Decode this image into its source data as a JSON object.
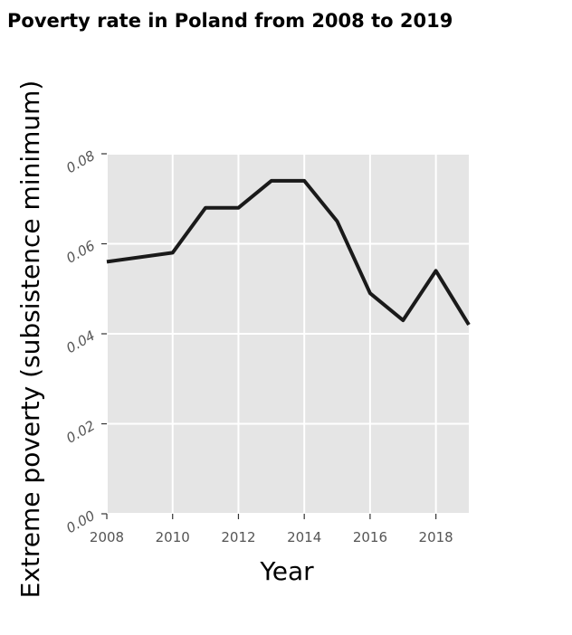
{
  "chart_data": {
    "type": "line",
    "title": "Poverty rate in Poland from 2008 to 2019",
    "xlabel": "Year",
    "ylabel": "Extreme poverty (subsistence minimum)",
    "x": [
      2008,
      2010,
      2011,
      2012,
      2013,
      2014,
      2015,
      2016,
      2017,
      2018,
      2019
    ],
    "series": [
      {
        "values": [
          0.056,
          0.058,
          0.068,
          0.068,
          0.074,
          0.074,
          0.065,
          0.049,
          0.043,
          0.054,
          0.042
        ]
      }
    ],
    "xlim": [
      2008,
      2019
    ],
    "ylim": [
      0,
      0.08
    ],
    "x_ticks": [
      2008,
      2010,
      2012,
      2014,
      2016,
      2018
    ],
    "x_tick_labels": [
      "2008",
      "2010",
      "2012",
      "2014",
      "2016",
      "2018"
    ],
    "y_ticks": [
      0,
      0.02,
      0.04,
      0.06,
      0.08
    ],
    "y_tick_labels": [
      "0.00",
      "0.02",
      "0.04",
      "0.06",
      "0.08"
    ],
    "grid": true,
    "colors": {
      "panel": "#e5e5e5",
      "grid": "#ffffff",
      "line": "#1a1a1a"
    }
  }
}
